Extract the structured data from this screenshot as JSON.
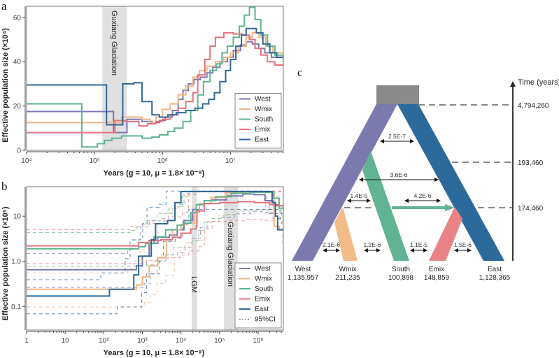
{
  "chart_data": [
    {
      "id": "a",
      "panel_label": "a",
      "type": "line",
      "style": "step",
      "xscale": "log",
      "xlim": [
        10000,
        60000000
      ],
      "ylim": [
        0,
        65
      ],
      "xlabel": "Years (g = 10, μ = 1.8× 10⁻⁸)",
      "ylabel": "Effective population size (×10⁴)",
      "xticks": [
        {
          "v": 10000,
          "label": "10⁴"
        },
        {
          "v": 100000,
          "label": "10⁵"
        },
        {
          "v": 1000000,
          "label": "10⁶"
        },
        {
          "v": 10000000,
          "label": "10⁷"
        }
      ],
      "yticks": [
        {
          "v": 0,
          "label": "0"
        },
        {
          "v": 20,
          "label": "20"
        },
        {
          "v": 40,
          "label": "40"
        },
        {
          "v": 60,
          "label": "60"
        }
      ],
      "shaded_regions": [
        {
          "x0": 130000,
          "x1": 300000,
          "label": "Guxiang Glaciation"
        }
      ],
      "legend": {
        "position": "bottom-right",
        "entries": [
          "West",
          "Wmix",
          "South",
          "Emix",
          "East"
        ]
      },
      "series": [
        {
          "name": "West",
          "color": "#7d78b0",
          "x": [
            10000,
            190000,
            190000,
            300000,
            300000,
            500000,
            700000,
            900000,
            1100000,
            1400000,
            1700000,
            2000000,
            2400000,
            2900000,
            3600000,
            4500000,
            5500000,
            7000000,
            9000000,
            11000000,
            14000000,
            17000000,
            21000000,
            26000000,
            32000000,
            40000000,
            60000000
          ],
          "y": [
            17.5,
            17.5,
            8,
            8,
            14,
            13,
            12.5,
            13.5,
            15,
            18,
            23,
            27,
            30,
            32,
            33,
            35,
            37.5,
            40,
            42,
            45,
            47.5,
            49,
            48,
            46,
            44,
            42,
            40
          ]
        },
        {
          "name": "Wmix",
          "color": "#f2b585",
          "x": [
            10000,
            200000,
            250000,
            350000,
            500000,
            650000,
            800000,
            1000000,
            1300000,
            1700000,
            2200000,
            2800000,
            3500000,
            4500000,
            6000000,
            8000000,
            10000000,
            13000000,
            17000000,
            21000000,
            26000000,
            33000000,
            42000000,
            60000000
          ],
          "y": [
            12.5,
            12.5,
            15,
            15,
            14,
            12.5,
            15,
            18.5,
            21,
            25,
            29,
            33,
            36,
            38,
            40,
            42,
            44,
            47,
            51,
            53,
            51,
            47,
            44,
            42
          ]
        },
        {
          "name": "South",
          "color": "#5db58f",
          "x": [
            10000,
            65000,
            65000,
            110000,
            140000,
            180000,
            250000,
            350000,
            500000,
            700000,
            900000,
            1200000,
            1500000,
            2000000,
            2600000,
            3300000,
            4000000,
            5000000,
            6200000,
            7500000,
            9000000,
            11000000,
            13500000,
            16000000,
            19000000,
            23000000,
            28000000,
            35000000,
            45000000,
            60000000
          ],
          "y": [
            21,
            21,
            1.5,
            3,
            4.5,
            5.5,
            6.5,
            6.5,
            5.5,
            6,
            7,
            8.5,
            10,
            13,
            18,
            25,
            31,
            36,
            39,
            44,
            47,
            51,
            56,
            61,
            64.5,
            59,
            52,
            47,
            43,
            41
          ]
        },
        {
          "name": "Emix",
          "color": "#e5737b",
          "x": [
            10000,
            180000,
            200000,
            280000,
            450000,
            600000,
            800000,
            1000000,
            1300000,
            1700000,
            2200000,
            2800000,
            3300000,
            4200000,
            5000000,
            6000000,
            8000000,
            11000000,
            15000000,
            19000000,
            23000000,
            28000000,
            35000000,
            45000000,
            60000000
          ],
          "y": [
            8,
            8,
            13.5,
            13,
            11,
            12,
            13,
            14,
            16,
            19,
            22,
            26,
            34,
            41,
            47,
            51,
            53,
            52.5,
            52,
            50,
            46,
            43,
            40,
            38.5,
            38
          ]
        },
        {
          "name": "East",
          "color": "#2e6796",
          "x": [
            10000,
            150000,
            150000,
            260000,
            260000,
            380000,
            500000,
            700000,
            900000,
            1200000,
            1600000,
            2200000,
            3000000,
            3900000,
            4800000,
            5800000,
            7000000,
            8500000,
            10000000,
            12000000,
            14500000,
            17000000,
            20000000,
            24000000,
            30000000,
            38000000,
            48000000,
            60000000
          ],
          "y": [
            29.5,
            29.5,
            11.5,
            11.5,
            30,
            30.5,
            22,
            16,
            15,
            16,
            17,
            18,
            19,
            21,
            23,
            26,
            31,
            36,
            41,
            47,
            52,
            55,
            55,
            53,
            48,
            44,
            42,
            40
          ]
        }
      ]
    },
    {
      "id": "b",
      "panel_label": "b",
      "type": "line",
      "style": "step",
      "xscale": "log",
      "yscale": "log",
      "xlim": [
        1,
        4500000
      ],
      "ylim": [
        0.03,
        45
      ],
      "xlabel": "Years (g = 10, μ = 1.8× 10⁻⁸)",
      "ylabel": "Effective population size (×10⁵)",
      "xticks": [
        {
          "v": 1,
          "label": "1"
        },
        {
          "v": 10,
          "label": "10"
        },
        {
          "v": 100,
          "label": "10²"
        },
        {
          "v": 1000,
          "label": "10³"
        },
        {
          "v": 10000,
          "label": "10⁴"
        },
        {
          "v": 100000,
          "label": "10⁵"
        },
        {
          "v": 1000000,
          "label": "10⁶"
        }
      ],
      "yticks": [
        {
          "v": 0.1,
          "label": "0.1"
        },
        {
          "v": 1,
          "label": "1.0"
        },
        {
          "v": 10,
          "label": "10"
        }
      ],
      "shaded_regions": [
        {
          "x0": 19000,
          "x1": 26000,
          "label": "LGM"
        },
        {
          "x0": 130000,
          "x1": 300000,
          "label": "Guxiang Glaciation"
        }
      ],
      "legend": {
        "position": "bottom-right",
        "entries": [
          "West",
          "Wmix",
          "South",
          "Emix",
          "East",
          "95%CI"
        ]
      },
      "series": [
        {
          "name": "West",
          "color": "#7d78b0",
          "x": [
            1,
            450,
            700,
            1000,
            1500,
            2500,
            5000,
            8000,
            12000,
            20000,
            30000,
            60000,
            150000,
            400000,
            800000,
            1500000,
            2500000,
            4500000
          ],
          "y": [
            0.65,
            0.65,
            0.8,
            1.3,
            2.5,
            3.4,
            3.8,
            5,
            8,
            14,
            19,
            23,
            28,
            31,
            30,
            22,
            17,
            15
          ]
        },
        {
          "name": "Wmix",
          "color": "#f2b585",
          "x": [
            1,
            500,
            700,
            1000,
            1500,
            2500,
            4000,
            4200,
            6000,
            10000,
            15000,
            22000,
            30000,
            60000,
            150000,
            500000,
            1500000,
            2500000,
            2600000,
            3500000
          ],
          "y": [
            0.24,
            0.24,
            0.3,
            0.45,
            0.8,
            1.2,
            1.3,
            3,
            5,
            6.5,
            7,
            12,
            19,
            26,
            33,
            35,
            35,
            30,
            6,
            5
          ]
        },
        {
          "name": "South",
          "color": "#5db58f",
          "x": [
            1,
            500,
            800,
            1200,
            2000,
            4000,
            8000,
            12000,
            18000,
            25000,
            40000,
            80000,
            200000,
            600000,
            1500000,
            2500000,
            3500000,
            4500000
          ],
          "y": [
            1.9,
            1.9,
            2.1,
            2.5,
            3.5,
            5,
            6.3,
            7,
            12,
            18,
            22,
            27,
            32,
            34,
            34,
            25,
            15,
            12
          ]
        },
        {
          "name": "Emix",
          "color": "#e5737b",
          "x": [
            1,
            650,
            800,
            1500,
            3000,
            6000,
            10000,
            18000,
            25000,
            26000,
            40000,
            100000,
            300000,
            800000,
            2000000,
            3500000,
            4500000
          ],
          "y": [
            2.2,
            2.2,
            2.6,
            2.9,
            3,
            3.4,
            4.2,
            5.2,
            6,
            13,
            19,
            20,
            21,
            20,
            18,
            17,
            16
          ]
        },
        {
          "name": "East",
          "color": "#2e6796",
          "x": [
            1,
            140,
            140,
            450,
            600,
            800,
            1200,
            1700,
            2200,
            3000,
            4500,
            7000,
            10000,
            30000,
            300000,
            1000000,
            1800000,
            2300000,
            2800000,
            3200000
          ],
          "y": [
            0.17,
            0.17,
            0.24,
            0.24,
            0.5,
            1.3,
            1.3,
            3,
            6.8,
            6.8,
            8,
            20,
            35,
            35,
            35,
            35,
            35,
            20,
            10,
            5
          ]
        }
      ]
    }
  ],
  "panel_c": {
    "panel_label": "c",
    "axis_label": "Time (years)",
    "time_marks": [
      "4,794,260",
      "193,460",
      "174,460"
    ],
    "populations": [
      {
        "name": "West",
        "size": "1,135,957",
        "color": "#7b79ae"
      },
      {
        "name": "Wmix",
        "size": "211,235",
        "color": "#f2bb8a"
      },
      {
        "name": "South",
        "size": "100,898",
        "color": "#62b394"
      },
      {
        "name": "Emix",
        "size": "148,859",
        "color": "#e88386"
      },
      {
        "name": "East",
        "size": "1,128,365",
        "color": "#2b6a9a"
      }
    ],
    "ancestral_color": "#8a8a8a",
    "migration_rates": [
      {
        "label": "2.5E-7",
        "between": "West-East"
      },
      {
        "label": "3.6E-6",
        "between": "West-East"
      },
      {
        "label": "1.4E-5",
        "between": "West-South"
      },
      {
        "label": "4.2E-6",
        "between": "South-East"
      },
      {
        "label": "2.1E-6",
        "between": "West-Wmix"
      },
      {
        "label": "1.2E-6",
        "between": "Wmix-South"
      },
      {
        "label": "1.1E-5",
        "between": "South-Emix"
      },
      {
        "label": "1.5E-6",
        "between": "Emix-East"
      }
    ],
    "admixture_arrow": {
      "from": "South",
      "to": "East",
      "color": "#62b394"
    }
  }
}
